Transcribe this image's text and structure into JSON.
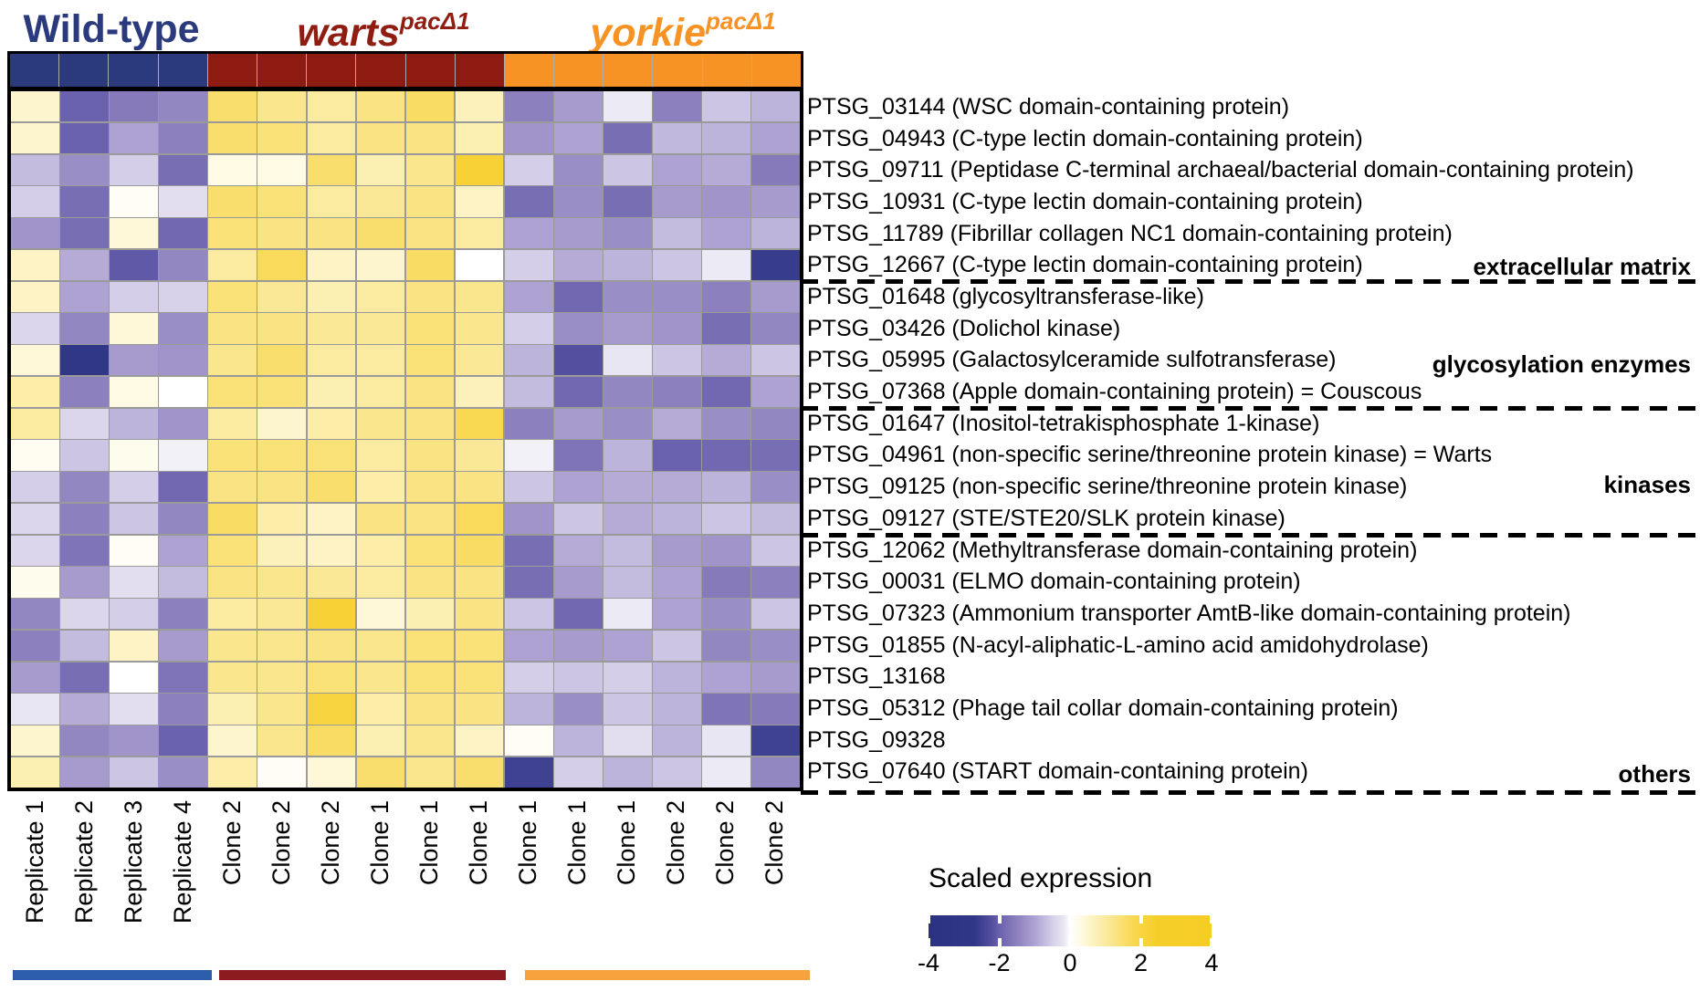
{
  "header": {
    "groups": [
      {
        "name": "Wild-type",
        "italic": false,
        "sup": "",
        "color": "#2B3A7C",
        "band_color": "#2B3A7C",
        "bar_color": "#2B5DAC",
        "n_cols": 4
      },
      {
        "name": "warts",
        "italic": true,
        "sup": "pacΔ1",
        "color": "#8F1D12",
        "band_color": "#8E1B12",
        "bar_color": "#8C1B20",
        "n_cols": 6
      },
      {
        "name": "yorkie",
        "italic": true,
        "sup": "pacΔ1",
        "color": "#F79324",
        "band_color": "#F79324",
        "bar_color": "#F7A23C",
        "n_cols": 6
      }
    ]
  },
  "chart_data": {
    "type": "heatmap",
    "columns": [
      {
        "label": "Replicate 1",
        "group": "Wild-type"
      },
      {
        "label": "Replicate 2",
        "group": "Wild-type"
      },
      {
        "label": "Replicate 3",
        "group": "Wild-type"
      },
      {
        "label": "Replicate 4",
        "group": "Wild-type"
      },
      {
        "label": "Clone 2",
        "group": "warts pacΔ1"
      },
      {
        "label": "Clone 2",
        "group": "warts pacΔ1"
      },
      {
        "label": "Clone 2",
        "group": "warts pacΔ1"
      },
      {
        "label": "Clone 1",
        "group": "warts pacΔ1"
      },
      {
        "label": "Clone 1",
        "group": "warts pacΔ1"
      },
      {
        "label": "Clone 1",
        "group": "warts pacΔ1"
      },
      {
        "label": "Clone 1",
        "group": "yorkie pacΔ1"
      },
      {
        "label": "Clone 1",
        "group": "yorkie pacΔ1"
      },
      {
        "label": "Clone 1",
        "group": "yorkie pacΔ1"
      },
      {
        "label": "Clone 2",
        "group": "yorkie pacΔ1"
      },
      {
        "label": "Clone 2",
        "group": "yorkie pacΔ1"
      },
      {
        "label": "Clone 2",
        "group": "yorkie pacΔ1"
      }
    ],
    "rows": [
      {
        "label": "PTSG_03144 (WSC domain-containing protein)",
        "category": "extracellular matrix"
      },
      {
        "label": "PTSG_04943 (C-type lectin domain-containing protein)",
        "category": "extracellular matrix"
      },
      {
        "label": "PTSG_09711 (Peptidase C-terminal archaeal/bacterial domain-containing protein)",
        "category": "extracellular matrix"
      },
      {
        "label": "PTSG_10931 (C-type lectin domain-containing protein)",
        "category": "extracellular matrix"
      },
      {
        "label": "PTSG_11789 (Fibrillar collagen NC1 domain-containing protein)",
        "category": "extracellular matrix"
      },
      {
        "label": "PTSG_12667 (C-type lectin domain-containing protein)",
        "category": "extracellular matrix"
      },
      {
        "label": "PTSG_01648 (glycosyltransferase-like)",
        "category": "glycosylation enzymes"
      },
      {
        "label": "PTSG_03426 (Dolichol kinase)",
        "category": "glycosylation enzymes"
      },
      {
        "label": "PTSG_05995 (Galactosylceramide sulfotransferase)",
        "category": "glycosylation enzymes"
      },
      {
        "label": "PTSG_07368 (Apple domain-containing protein) = Couscous",
        "category": "glycosylation enzymes"
      },
      {
        "label": "PTSG_01647 (Inositol-tetrakisphosphate 1-kinase)",
        "category": "kinases"
      },
      {
        "label": "PTSG_04961 (non-specific serine/threonine protein kinase)  = Warts",
        "category": "kinases"
      },
      {
        "label": "PTSG_09125 (non-specific serine/threonine protein kinase)",
        "category": "kinases"
      },
      {
        "label": "PTSG_09127 (STE/STE20/SLK protein kinase)",
        "category": "kinases"
      },
      {
        "label": "PTSG_12062 (Methyltransferase domain-containing protein)",
        "category": "others"
      },
      {
        "label": "PTSG_00031 (ELMO domain-containing protein)",
        "category": "others"
      },
      {
        "label": "PTSG_07323 (Ammonium transporter AmtB-like domain-containing protein)",
        "category": "others"
      },
      {
        "label": "PTSG_01855 (N-acyl-aliphatic-L-amino acid amidohydrolase)",
        "category": "others"
      },
      {
        "label": "PTSG_13168",
        "category": "others"
      },
      {
        "label": "PTSG_05312 (Phage tail collar domain-containing protein)",
        "category": "others"
      },
      {
        "label": "PTSG_09328",
        "category": "others"
      },
      {
        "label": "PTSG_07640 (START domain-containing protein)",
        "category": "others"
      }
    ],
    "categories": [
      {
        "name": "extracellular matrix",
        "last_row": 6
      },
      {
        "name": "glycosylation enzymes",
        "last_row": 10
      },
      {
        "name": "kinases",
        "last_row": 14
      },
      {
        "name": "others",
        "last_row": 22
      }
    ],
    "values": [
      [
        0.5,
        -2.0,
        -1.6,
        -1.4,
        1.5,
        1.2,
        1.0,
        1.3,
        1.6,
        0.7,
        -1.5,
        -1.1,
        -0.15,
        -1.5,
        -0.6,
        -0.8
      ],
      [
        0.5,
        -2.0,
        -1.0,
        -1.5,
        1.5,
        1.4,
        1.0,
        1.3,
        1.3,
        0.8,
        -1.2,
        -1.0,
        -1.8,
        -0.75,
        -0.8,
        -1.0
      ],
      [
        -0.7,
        -1.3,
        -0.5,
        -1.8,
        0.3,
        0.3,
        1.5,
        0.8,
        1.2,
        2.2,
        -0.5,
        -1.3,
        -0.6,
        -1.0,
        -0.9,
        -1.6
      ],
      [
        -0.5,
        -1.8,
        0.1,
        -0.3,
        1.5,
        1.4,
        1.0,
        1.1,
        1.3,
        0.6,
        -1.8,
        -1.3,
        -1.8,
        -1.1,
        -1.2,
        -1.1
      ],
      [
        -1.2,
        -1.8,
        0.4,
        -1.9,
        1.4,
        1.3,
        1.3,
        1.5,
        1.3,
        1.0,
        -1.0,
        -1.1,
        -1.3,
        -0.7,
        -1.0,
        -0.8
      ],
      [
        0.6,
        -0.9,
        -2.1,
        -1.4,
        1.0,
        1.7,
        0.6,
        0.5,
        1.6,
        0.0,
        -0.5,
        -0.9,
        -0.8,
        -0.6,
        -0.15,
        -2.6
      ],
      [
        0.6,
        -1.0,
        -0.5,
        -0.45,
        1.4,
        1.1,
        0.8,
        1.0,
        1.3,
        1.2,
        -1.0,
        -1.9,
        -1.3,
        -1.3,
        -1.5,
        -1.1
      ],
      [
        -0.4,
        -1.4,
        0.4,
        -1.3,
        1.3,
        1.3,
        1.1,
        1.1,
        1.4,
        1.2,
        -0.5,
        -1.3,
        -1.1,
        -1.2,
        -1.8,
        -1.4
      ],
      [
        0.4,
        -2.8,
        -1.1,
        -1.2,
        1.2,
        1.5,
        1.0,
        1.0,
        1.4,
        1.1,
        -0.8,
        -2.2,
        -0.2,
        -0.6,
        -0.9,
        -0.6
      ],
      [
        0.9,
        -1.5,
        0.3,
        0.0,
        1.4,
        1.4,
        0.8,
        1.0,
        1.3,
        0.7,
        -0.7,
        -1.9,
        -1.4,
        -1.5,
        -1.9,
        -1.0
      ],
      [
        1.0,
        -0.4,
        -0.8,
        -1.2,
        1.0,
        0.5,
        0.9,
        1.2,
        1.3,
        1.8,
        -1.5,
        -1.1,
        -1.3,
        -0.9,
        -1.3,
        -1.4
      ],
      [
        0.15,
        -0.6,
        0.2,
        -0.1,
        1.4,
        1.4,
        1.4,
        1.0,
        1.3,
        1.1,
        -0.1,
        -1.7,
        -0.8,
        -2.0,
        -1.9,
        -1.8
      ],
      [
        -0.5,
        -1.4,
        -0.5,
        -1.9,
        1.3,
        1.3,
        1.5,
        0.9,
        1.3,
        1.3,
        -0.6,
        -1.0,
        -0.9,
        -0.9,
        -0.8,
        -1.3
      ],
      [
        -0.4,
        -1.5,
        -0.6,
        -1.4,
        1.6,
        0.9,
        0.6,
        1.3,
        1.3,
        1.7,
        -1.2,
        -0.6,
        -0.9,
        -0.8,
        -0.6,
        -0.7
      ],
      [
        -0.4,
        -1.7,
        0.1,
        -1.0,
        1.4,
        0.7,
        0.6,
        0.9,
        1.4,
        1.6,
        -1.8,
        -0.9,
        -0.7,
        -1.1,
        -1.2,
        -0.6
      ],
      [
        0.2,
        -1.1,
        -0.3,
        -0.7,
        1.3,
        1.2,
        1.1,
        1.0,
        1.3,
        1.3,
        -1.8,
        -1.1,
        -0.7,
        -1.0,
        -1.6,
        -1.5
      ],
      [
        -1.4,
        -0.4,
        -0.5,
        -1.5,
        1.0,
        1.1,
        2.2,
        0.4,
        0.8,
        1.3,
        -0.6,
        -1.9,
        -0.15,
        -1.0,
        -1.3,
        -0.6
      ],
      [
        -1.5,
        -0.7,
        0.6,
        -1.1,
        1.2,
        1.2,
        1.3,
        1.2,
        1.4,
        1.4,
        -1.0,
        -1.1,
        -1.0,
        -0.6,
        -1.4,
        -1.3
      ],
      [
        -1.1,
        -1.8,
        0.0,
        -1.7,
        1.2,
        1.2,
        1.4,
        1.2,
        1.4,
        1.4,
        -0.5,
        -0.6,
        -0.5,
        -0.8,
        -1.0,
        -1.1
      ],
      [
        -0.2,
        -0.9,
        -0.3,
        -1.5,
        0.8,
        1.2,
        2.0,
        0.9,
        1.3,
        1.3,
        -0.8,
        -1.3,
        -0.6,
        -0.8,
        -1.7,
        -1.6
      ],
      [
        0.5,
        -1.4,
        -1.2,
        -2.0,
        0.5,
        1.2,
        1.6,
        0.8,
        1.2,
        0.6,
        0.1,
        -0.8,
        -0.3,
        -0.8,
        -0.2,
        -2.5
      ],
      [
        0.8,
        -1.1,
        -0.6,
        -1.3,
        0.9,
        0.1,
        0.4,
        1.5,
        1.2,
        1.5,
        -2.5,
        -0.5,
        -0.8,
        -0.6,
        -0.15,
        -1.4
      ]
    ],
    "value_range": [
      -4,
      4
    ],
    "colormap_stops": [
      {
        "v": -4,
        "c": "#2B3282"
      },
      {
        "v": -2.7,
        "c": "#313787"
      },
      {
        "v": -2.2,
        "c": "#554F9F"
      },
      {
        "v": -2.0,
        "c": "#6A62AE"
      },
      {
        "v": -1.5,
        "c": "#8D80BE"
      },
      {
        "v": -1.0,
        "c": "#ADA2D2"
      },
      {
        "v": -0.5,
        "c": "#D4CEE8"
      },
      {
        "v": -0.15,
        "c": "#ECEAF5"
      },
      {
        "v": 0,
        "c": "#FFFFFF"
      },
      {
        "v": 0.3,
        "c": "#FEFAE3"
      },
      {
        "v": 0.6,
        "c": "#FDF3C4"
      },
      {
        "v": 1.0,
        "c": "#FBEBA0"
      },
      {
        "v": 1.3,
        "c": "#FAE383"
      },
      {
        "v": 1.6,
        "c": "#F9DC63"
      },
      {
        "v": 2.0,
        "c": "#F8D440"
      },
      {
        "v": 2.5,
        "c": "#F6CE2A"
      },
      {
        "v": 4,
        "c": "#F5CD25"
      }
    ],
    "legend": {
      "title": "Scaled expression",
      "tick_labels": [
        "-4",
        "-2",
        "0",
        "2",
        "4"
      ],
      "tick_values": [
        -4,
        -2,
        0,
        2,
        4
      ]
    }
  }
}
